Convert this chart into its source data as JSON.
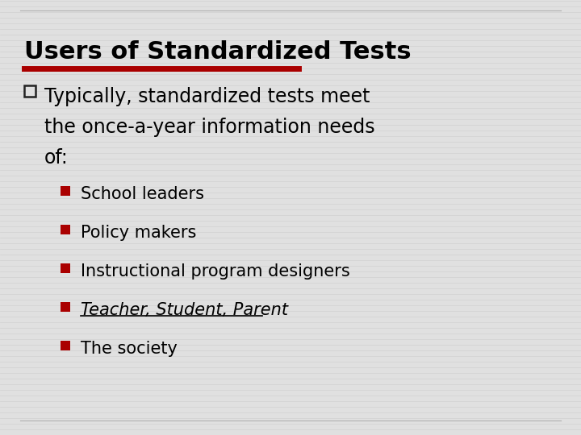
{
  "title": "Users of Standardized Tests",
  "title_fontsize": 22,
  "title_fontweight": "bold",
  "title_color": "#000000",
  "title_font": "DejaVu Sans",
  "bg_color": "#e0e0e0",
  "stripe_color": "#d4d4d4",
  "red_color": "#aa0000",
  "main_bullet_text_line1": "Typically, standardized tests meet",
  "main_bullet_text_line2": "the once-a-year information needs",
  "main_bullet_text_line3": "of:",
  "main_bullet_fontsize": 17,
  "main_bullet_font": "DejaVu Sans",
  "sub_bullets": [
    "School leaders",
    "Policy makers",
    "Instructional program designers",
    "Teacher, Student, Parent",
    "The society"
  ],
  "sub_bullet_italic_index": 3,
  "sub_bullet_fontsize": 15,
  "sub_bullet_font": "DejaVu Sans"
}
